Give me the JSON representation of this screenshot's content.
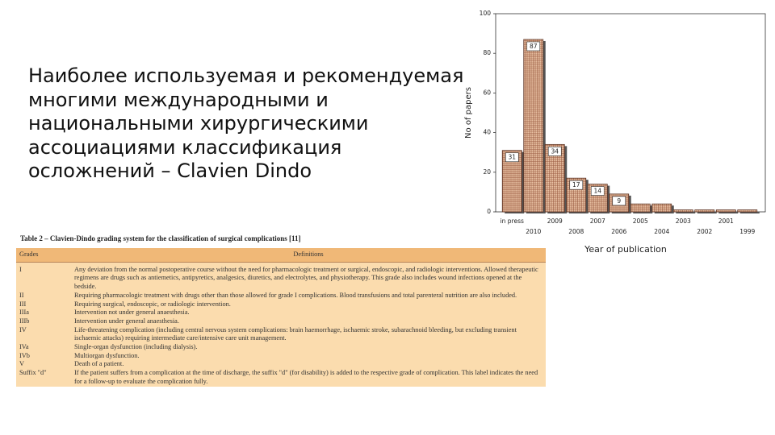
{
  "heading": [
    "Наиболее используемая и рекомендуемая",
    "многими международными и",
    "национальными хирургическими",
    "ассоциациями классификация",
    "осложнений – Clavien Dindo"
  ],
  "chart_data": {
    "type": "bar",
    "categories": [
      "in press",
      "2010",
      "2009",
      "2008",
      "2007",
      "2006",
      "2005",
      "2004",
      "2003",
      "2002",
      "2001",
      "1999"
    ],
    "values": [
      31,
      87,
      34,
      17,
      14,
      9,
      4,
      4,
      1,
      1,
      1,
      1
    ],
    "value_labels": [
      "31",
      "87",
      "34",
      "17",
      "14",
      "9",
      null,
      null,
      null,
      null,
      null,
      null
    ],
    "color": "#e9c2a4",
    "ylim": [
      0,
      100
    ],
    "yticks": [
      0,
      20,
      40,
      60,
      80,
      100
    ],
    "y_label": "No of papers",
    "x_label": "Year of publication"
  },
  "table": {
    "title": "Table 2 – Clavien-Dindo grading system for the classification of surgical complications [11]",
    "header": [
      "Grades",
      "Definitions"
    ],
    "rows": [
      [
        "I",
        "Any deviation from the normal postoperative course without the need for pharmacologic treatment or surgical, endoscopic, and radiologic interventions. Allowed therapeutic regimens are drugs such as antiemetics, antipyretics, analgesics, diuretics, and electrolytes, and physiotherapy. This grade also includes wound infections opened at the bedside."
      ],
      [
        "II",
        "Requiring pharmacologic treatment with drugs other than those allowed for grade I complications. Blood transfusions and total parenteral nutrition are also included."
      ],
      [
        "III",
        "Requiring surgical, endoscopic, or radiologic intervention."
      ],
      [
        "IIIa",
        "Intervention not under general anaesthesia."
      ],
      [
        "IIIb",
        "Intervention under general anaesthesia."
      ],
      [
        "IV",
        "Life-threatening complication (including central nervous system complications: brain haemorrhage, ischaemic stroke, subarachnoid bleeding, but excluding transient ischaemic attacks) requiring intermediate care/intensive care unit management."
      ],
      [
        "IVa",
        "Single-organ dysfunction (including dialysis)."
      ],
      [
        "IVb",
        "Multiorgan dysfunction."
      ],
      [
        "V",
        "Death of a patient."
      ],
      [
        "Suffix \"d\"",
        "If the patient suffers from a complication at the time of discharge, the suffix \"d\" (for disability) is added to the respective grade of complication. This label indicates the need for a follow-up to evaluate the complication fully."
      ]
    ]
  }
}
